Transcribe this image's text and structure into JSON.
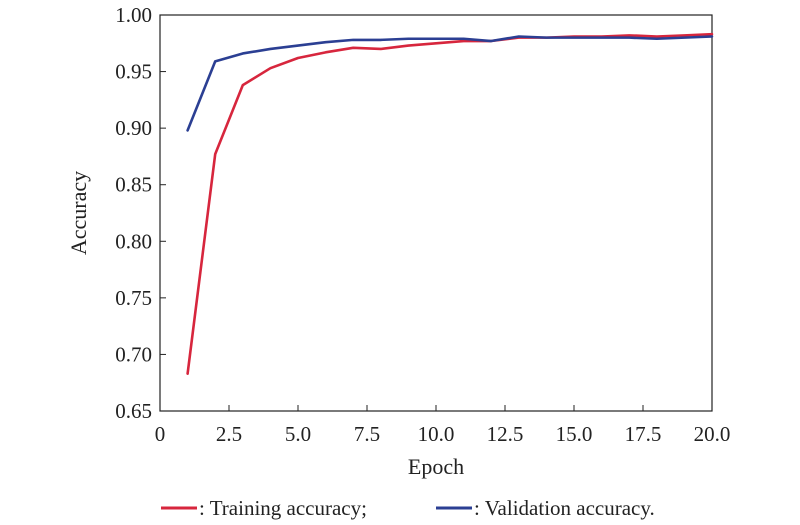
{
  "chart_data": {
    "type": "line",
    "xlabel": "Epoch",
    "ylabel": "Accuracy",
    "xlim": [
      0,
      20
    ],
    "ylim": [
      0.65,
      1.0
    ],
    "x_ticks": [
      "0",
      "2.5",
      "5.0",
      "7.5",
      "10.0",
      "12.5",
      "15.0",
      "17.5",
      "20.0"
    ],
    "y_ticks": [
      "0.65",
      "0.70",
      "0.75",
      "0.80",
      "0.85",
      "0.90",
      "0.95",
      "1.00"
    ],
    "grid": false,
    "legend_position": "bottom",
    "x": [
      1,
      2,
      3,
      4,
      5,
      6,
      7,
      8,
      9,
      10,
      11,
      12,
      13,
      14,
      15,
      16,
      17,
      18,
      19,
      20
    ],
    "series": [
      {
        "name": "Training accuracy",
        "legend_text": ": Training accuracy;",
        "color": "#d7263d",
        "values": [
          0.683,
          0.877,
          0.938,
          0.953,
          0.962,
          0.967,
          0.971,
          0.97,
          0.973,
          0.975,
          0.977,
          0.977,
          0.98,
          0.98,
          0.981,
          0.981,
          0.982,
          0.981,
          0.982,
          0.983
        ]
      },
      {
        "name": "Validation accuracy",
        "legend_text": ": Validation accuracy.",
        "color": "#2b3f93",
        "values": [
          0.898,
          0.959,
          0.966,
          0.97,
          0.973,
          0.976,
          0.978,
          0.978,
          0.979,
          0.979,
          0.979,
          0.977,
          0.981,
          0.98,
          0.98,
          0.98,
          0.98,
          0.979,
          0.98,
          0.981
        ]
      }
    ]
  }
}
